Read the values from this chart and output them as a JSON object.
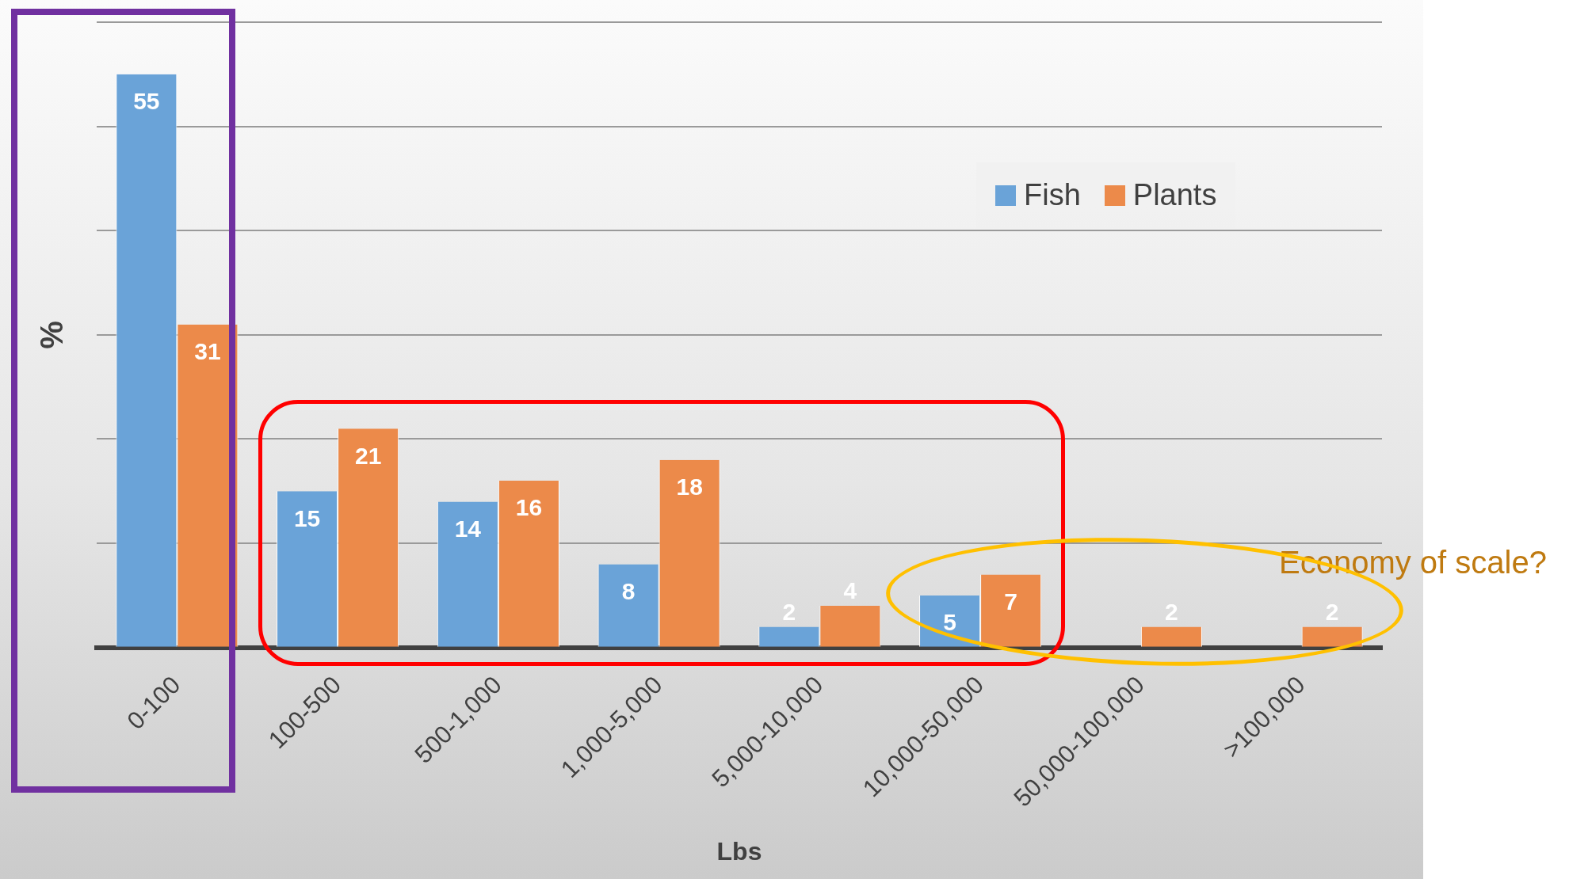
{
  "chart_data": {
    "type": "bar",
    "xlabel": "Lbs",
    "ylabel": "%",
    "categories": [
      "0-100",
      "100-500",
      "500-1,000",
      "1,000-5,000",
      "5,000-10,000",
      "10,000-50,000",
      "50,000-100,000",
      ">100,000"
    ],
    "series": [
      {
        "name": "Fish",
        "color": "#6aa3d8",
        "values": [
          55,
          15,
          14,
          8,
          2,
          5,
          null,
          null
        ]
      },
      {
        "name": "Plants",
        "color": "#ec8a4a",
        "values": [
          31,
          21,
          16,
          18,
          4,
          7,
          2,
          2
        ]
      }
    ],
    "ylim": [
      0,
      60
    ],
    "yticks": [
      {
        "value": 0,
        "label": null
      },
      {
        "value": 10,
        "label": null
      },
      {
        "value": 20,
        "label": null
      },
      {
        "value": 30,
        "label": null
      },
      {
        "value": 40,
        "label": null
      },
      {
        "value": 50,
        "label": null
      },
      {
        "value": 60,
        "label": null
      }
    ],
    "grid": "y",
    "legend": "top right",
    "data_labels": true,
    "annotations": [
      "Economy of scale?"
    ]
  }
}
